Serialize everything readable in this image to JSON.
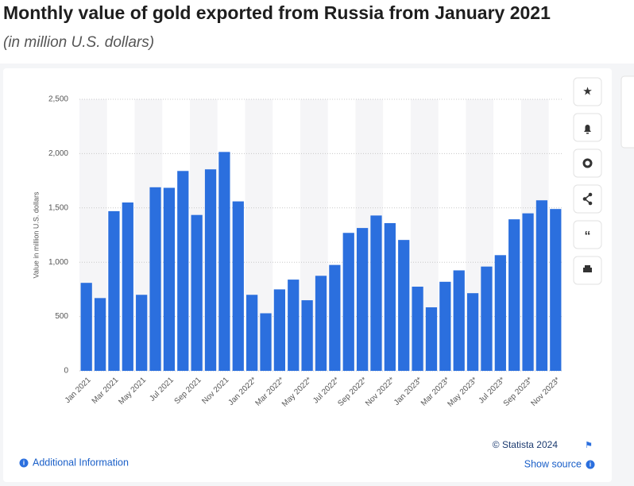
{
  "chart_data": {
    "type": "bar",
    "title": "Monthly value of gold exported from Russia from January 2021",
    "subtitle": "(in million U.S. dollars)",
    "y_label": "Value in million U.S. dollars",
    "categories": [
      "Jan 2021",
      null,
      "Mar 2021",
      null,
      "May 2021",
      null,
      "Jul 2021",
      null,
      "Sep 2021",
      null,
      "Nov 2021",
      null,
      "Jan 2022*",
      null,
      "Mar 2022*",
      null,
      "May 2022*",
      null,
      "Jul 2022*",
      null,
      "Sep 2022*",
      null,
      "Nov 2022*",
      null,
      "Jan 2023*",
      null,
      "Mar 2023*",
      null,
      "May 2023*",
      null,
      "Jul 2023*",
      null,
      "Sep 2023*",
      null,
      "Nov 2023*"
    ],
    "values": [
      810,
      670,
      1470,
      1550,
      700,
      1690,
      1685,
      1840,
      1435,
      1855,
      2015,
      1560,
      700,
      530,
      750,
      840,
      650,
      875,
      975,
      1270,
      1315,
      1430,
      1360,
      1205,
      775,
      585,
      820,
      925,
      715,
      960,
      1065,
      1395,
      1450,
      1570,
      1490
    ],
    "color": "#2b6fde",
    "ylim": [
      0,
      2500
    ],
    "yticks": [
      0,
      500,
      {
        "value": 1000,
        "label": "1,000"
      },
      {
        "value": 1500,
        "label": "1,500"
      },
      {
        "value": 2000,
        "label": "2,000"
      },
      {
        "value": 2500,
        "label": "2,500"
      }
    ],
    "grid": true,
    "copyright": "© Statista 2024",
    "additional_info": "Additional Information",
    "show_source": "Show source"
  }
}
